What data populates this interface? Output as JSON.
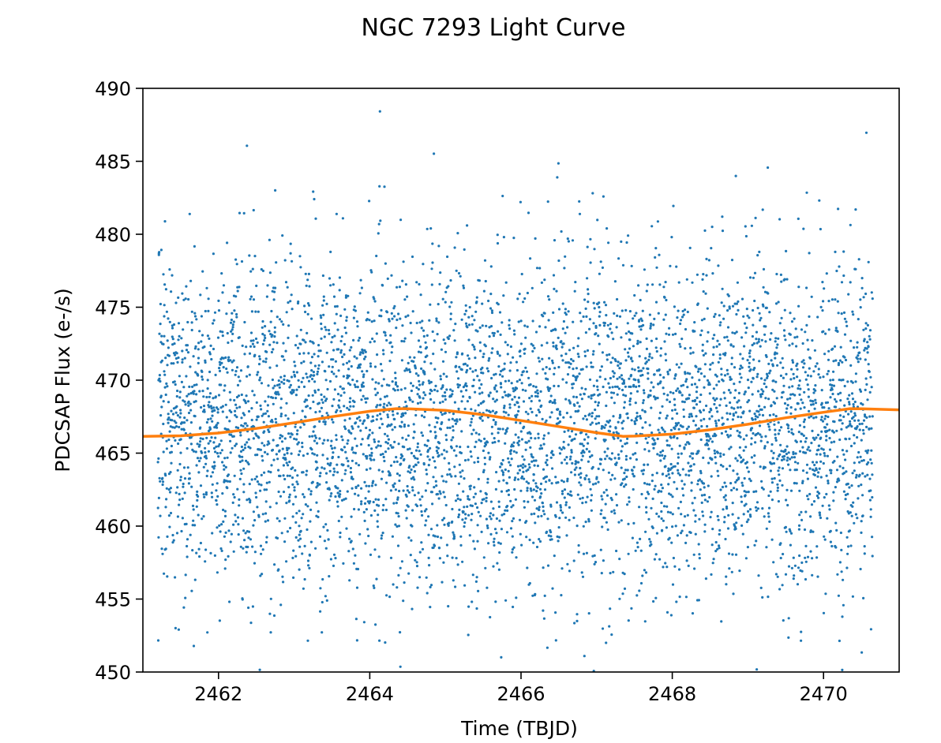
{
  "chart_data": {
    "type": "scatter",
    "title": "NGC 7293 Light Curve",
    "xlabel": "Time (TBJD)",
    "ylabel": "PDCSAP Flux (e-/s)",
    "xlim": [
      2461.0,
      2471.0
    ],
    "ylim": [
      450,
      490
    ],
    "x_ticks": [
      2462,
      2464,
      2466,
      2468,
      2470
    ],
    "y_ticks": [
      450,
      455,
      460,
      465,
      470,
      475,
      480,
      485,
      490
    ],
    "grid": false,
    "legend": "none",
    "series": [
      {
        "kind": "scatter",
        "color": "#1f77b4",
        "marker": "small-dot",
        "x_range": [
          2461.2,
          2470.65
        ],
        "n_points": 5200,
        "center": 467.0,
        "spread_std": 5.6,
        "min_value": 450,
        "max_value": 489.8
      },
      {
        "kind": "line",
        "color": "#ff7f0e",
        "model": "sinusoid",
        "baseline": 467.1,
        "amplitude": 0.95,
        "period": 6.0,
        "peak_time": 2464.35,
        "points": [
          [
            2461.0,
            466.15
          ],
          [
            2461.5,
            466.19
          ],
          [
            2462.0,
            466.38
          ],
          [
            2462.5,
            466.69
          ],
          [
            2463.0,
            467.08
          ],
          [
            2463.5,
            467.5
          ],
          [
            2464.0,
            467.87
          ],
          [
            2464.35,
            468.05
          ],
          [
            2464.5,
            468.04
          ],
          [
            2465.0,
            467.93
          ],
          [
            2465.5,
            467.64
          ],
          [
            2466.0,
            467.23
          ],
          [
            2466.5,
            466.82
          ],
          [
            2467.0,
            466.4
          ],
          [
            2467.35,
            466.15
          ],
          [
            2467.5,
            466.17
          ],
          [
            2468.0,
            466.3
          ],
          [
            2468.5,
            466.6
          ],
          [
            2469.0,
            466.98
          ],
          [
            2469.5,
            467.42
          ],
          [
            2470.0,
            467.8
          ],
          [
            2470.35,
            468.05
          ],
          [
            2470.5,
            468.04
          ],
          [
            2471.0,
            467.97
          ]
        ]
      }
    ]
  }
}
